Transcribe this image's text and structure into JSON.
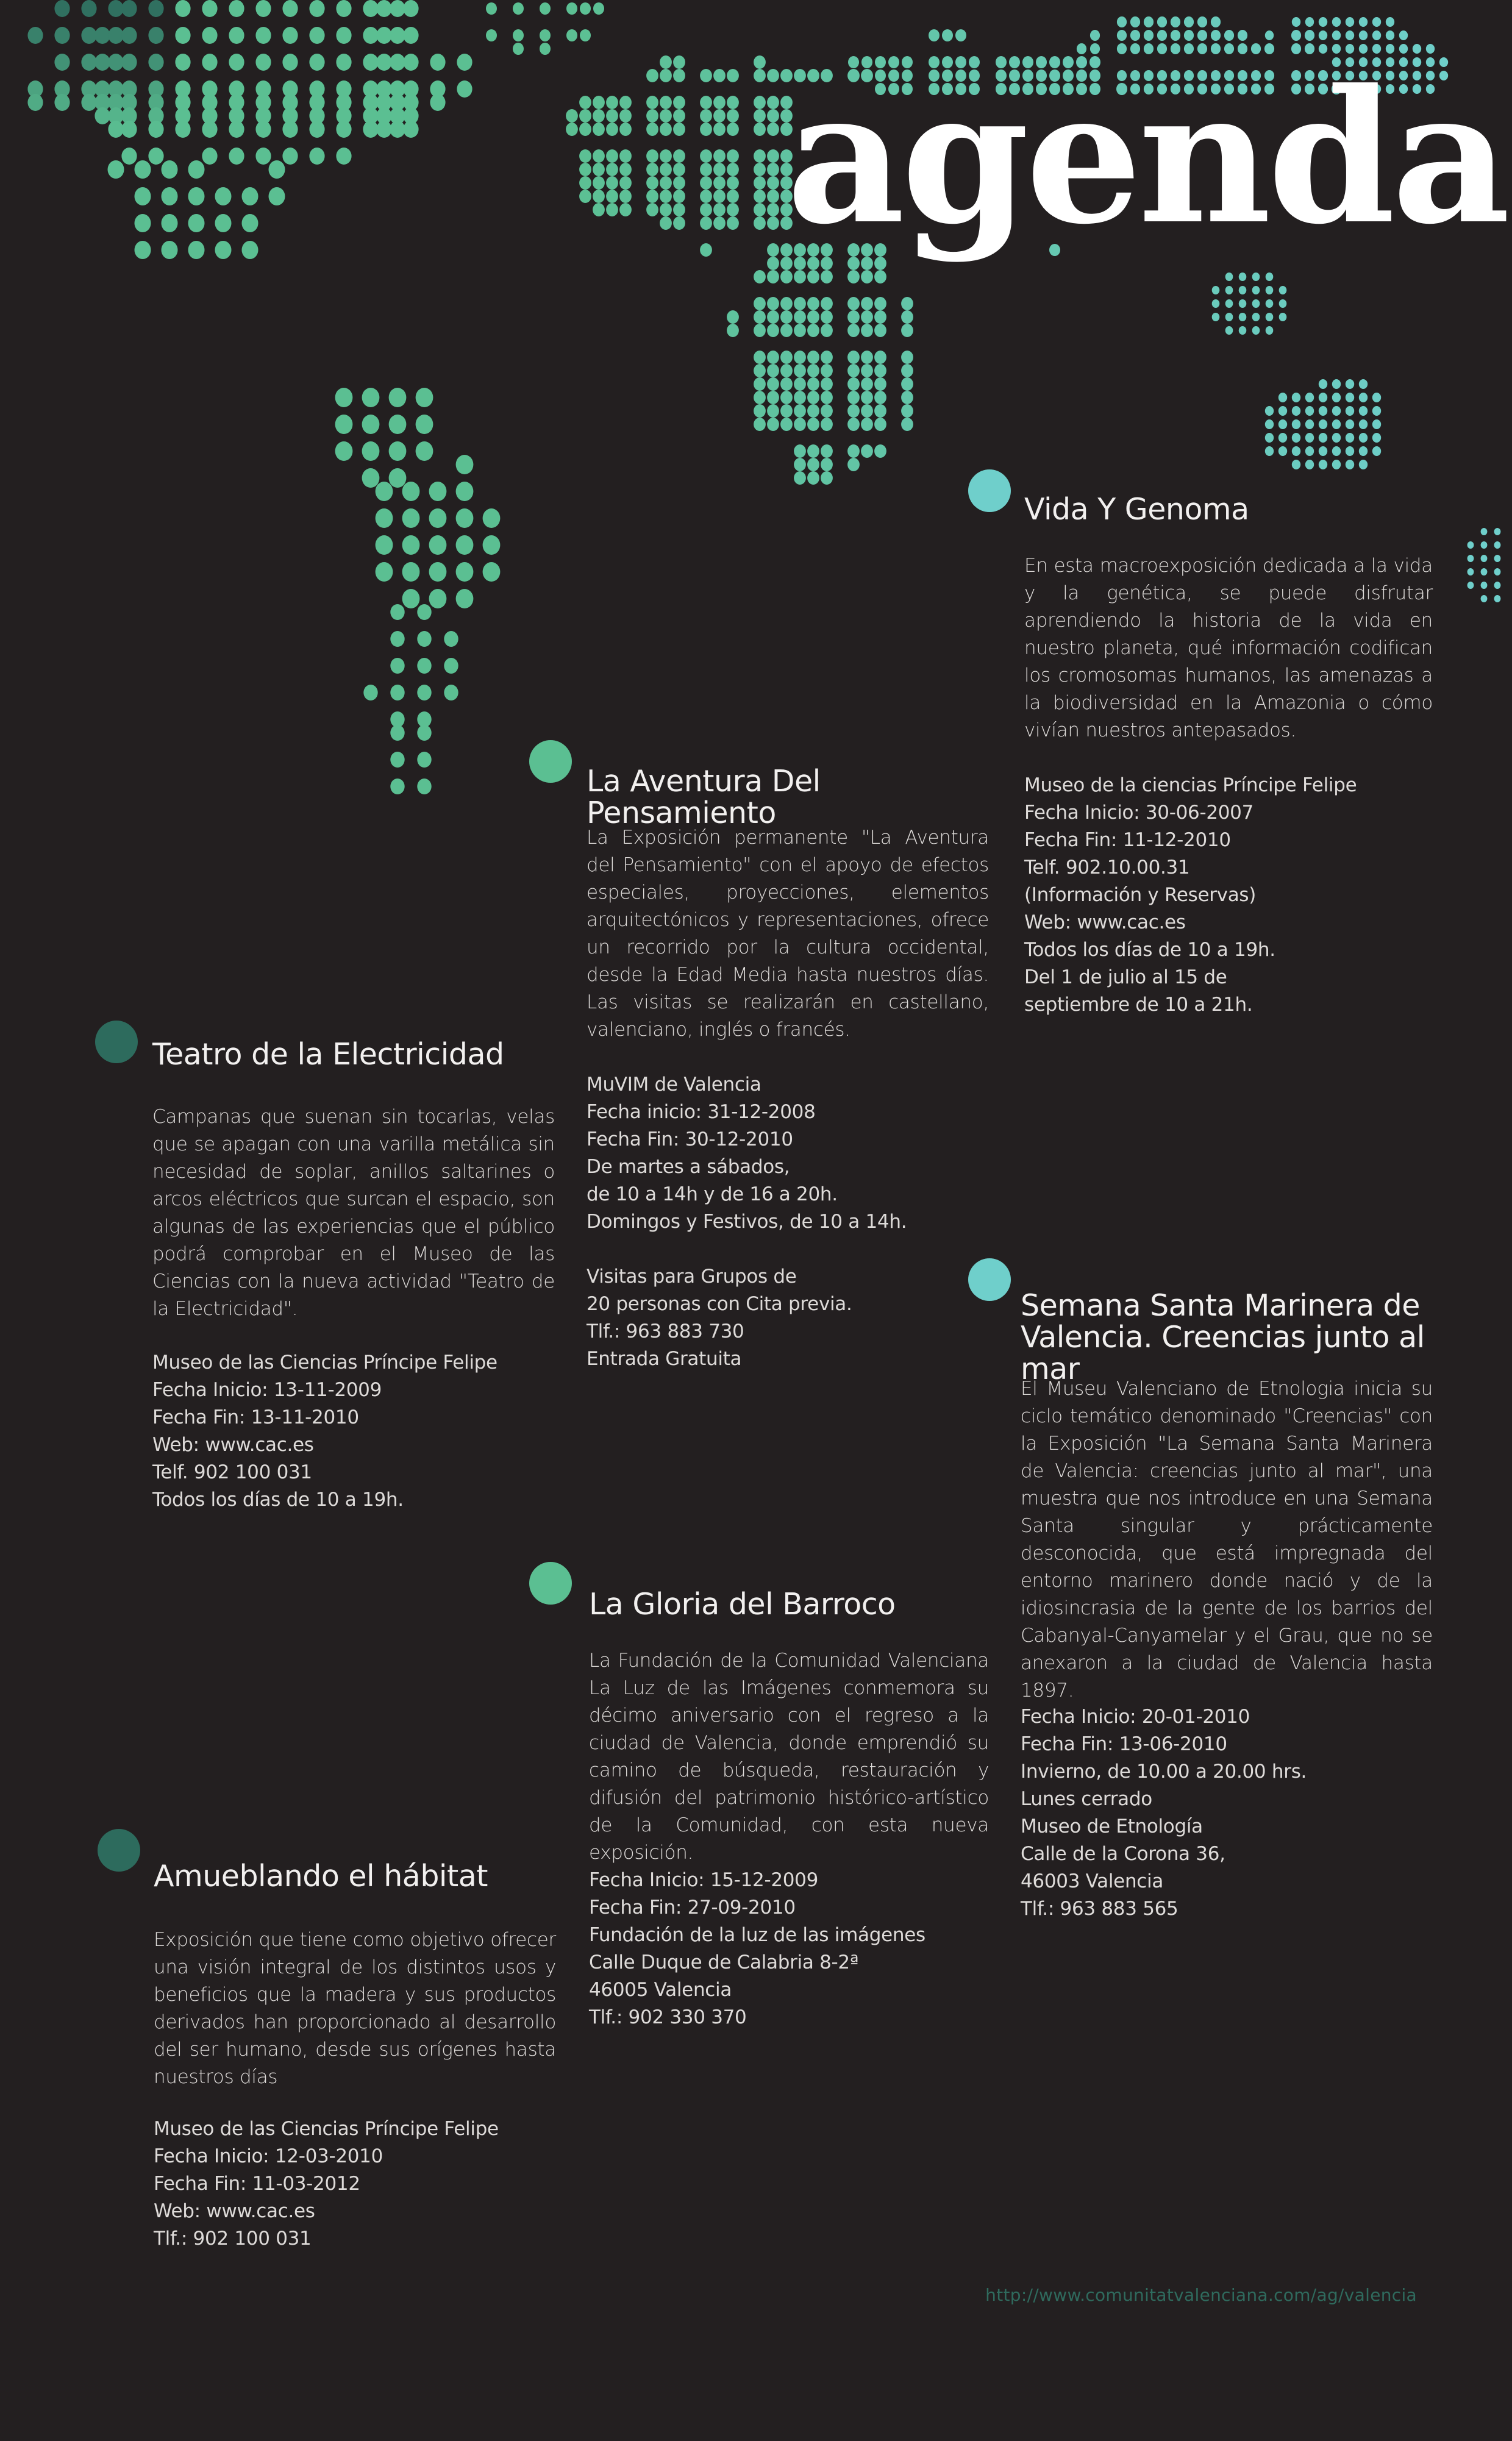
{
  "header": {
    "title": "agenda"
  },
  "colors": {
    "background": "#231f20",
    "map_green": "#5bbf92",
    "map_cyan": "#6fcfcb",
    "dark_teal": "#2d6b5d"
  },
  "events": [
    {
      "title": "Vida Y Genoma",
      "dot_color": "#6fcfcb",
      "description": "En esta macroexposición dedicada a la vida y la genética, se puede disfrutar aprendiendo la historia de la vida en nuestro planeta, qué información codifican los cromosomas humanos, las amenazas a la biodiversidad en la Amazonia o cómo vivían nuestros antepasados.",
      "info": [
        "Museo de la ciencias Príncipe Felipe",
        "Fecha Inicio: 30-06-2007",
        "Fecha Fin: 11-12-2010",
        "Telf. 902.10.00.31",
        "(Información y Reservas)",
        "Web: www.cac.es",
        "Todos los días de 10 a 19h.",
        "Del 1 de julio al 15 de",
        "septiembre de 10 a 21h."
      ]
    },
    {
      "title": "La Aventura Del Pensamiento",
      "dot_color": "#5bbf92",
      "description": "La Exposición permanente \"La Aventura del Pensamiento\" con el apoyo de efectos especiales, proyecciones, elementos arquitectónicos y representaciones, ofrece un recorrido por la cultura occidental, desde la Edad Media hasta nuestros días. Las visitas se realizarán en castellano, valenciano, inglés o francés.",
      "info": [
        "MuVIM de Valencia",
        "Fecha inicio: 31-12-2008",
        "Fecha Fin: 30-12-2010",
        "De martes a sábados,",
        "de 10 a 14h y de 16 a 20h.",
        "Domingos y Festivos, de 10 a 14h.",
        "",
        "Visitas para Grupos de",
        "20 personas con Cita previa.",
        "Tlf.: 963 883 730",
        "Entrada Gratuita"
      ]
    },
    {
      "title": "Teatro de la Electricidad",
      "dot_color": "#2d6b5d",
      "description": "Campanas que suenan sin tocarlas, velas que se apagan con una varilla metálica sin necesidad de soplar, anillos saltarines o arcos eléctricos que surcan el espacio, son algunas de las experiencias que el público podrá comprobar en el Museo de las Ciencias con la nueva actividad \"Teatro de la Electricidad\".",
      "info": [
        "Museo de las Ciencias Príncipe Felipe",
        "Fecha Inicio: 13-11-2009",
        "Fecha Fin: 13-11-2010",
        "Web: www.cac.es",
        "Telf. 902 100 031",
        "Todos los días de 10 a 19h."
      ]
    },
    {
      "title": "Semana Santa Marinera de Valencia. Creencias junto al mar",
      "dot_color": "#6fcfcb",
      "description": "El Museu Valenciano de Etnologia inicia su ciclo temático denominado \"Creencias\" con la Exposición \"La Semana Santa Marinera de Valencia: creencias junto al mar\", una muestra que nos introduce en una Semana Santa singular y prácticamente desconocida, que está impregnada del entorno marinero donde nació y de la idiosincrasia de la gente de los barrios del Cabanyal-Canyamelar y el Grau, que no se anexaron a la ciudad de Valencia hasta 1897.",
      "info": [
        "Fecha Inicio: 20-01-2010",
        "Fecha Fin: 13-06-2010",
        "Invierno, de 10.00 a 20.00 hrs.",
        "Lunes cerrado",
        "Museo de Etnología",
        "Calle de la Corona 36,",
        "46003 Valencia",
        "Tlf.: 963 883 565"
      ]
    },
    {
      "title": "La Gloria del Barroco",
      "dot_color": "#5bbf92",
      "description": "La Fundación de la Comunidad Valenciana La Luz de las Imágenes conmemora su décimo aniversario con el regreso a la ciudad de Valencia, donde emprendió su camino de búsqueda, restauración y difusión del patrimonio histórico-artístico de la Comunidad, con esta nueva exposición.",
      "info": [
        "Fecha Inicio: 15-12-2009",
        "Fecha Fin: 27-09-2010",
        "Fundación de la luz de las imágenes",
        "Calle Duque de Calabria 8-2ª",
        "46005 Valencia",
        "Tlf.: 902 330 370"
      ]
    },
    {
      "title": "Amueblando el hábitat",
      "dot_color": "#2d6b5d",
      "description": "Exposición que tiene como objetivo ofrecer una visión integral de los distintos usos y beneficios que la madera y sus productos derivados han proporcionado al desarrollo del ser humano, desde sus orígenes hasta nuestros días",
      "info": [
        "Museo de las Ciencias Príncipe Felipe",
        "Fecha Inicio: 12-03-2010",
        "Fecha Fin: 11-03-2012",
        "Web: www.cac.es",
        "Tlf.: 902 100 031"
      ]
    }
  ],
  "footer": {
    "url": "http://www.comunitatvalenciana.com/ag/valencia"
  }
}
